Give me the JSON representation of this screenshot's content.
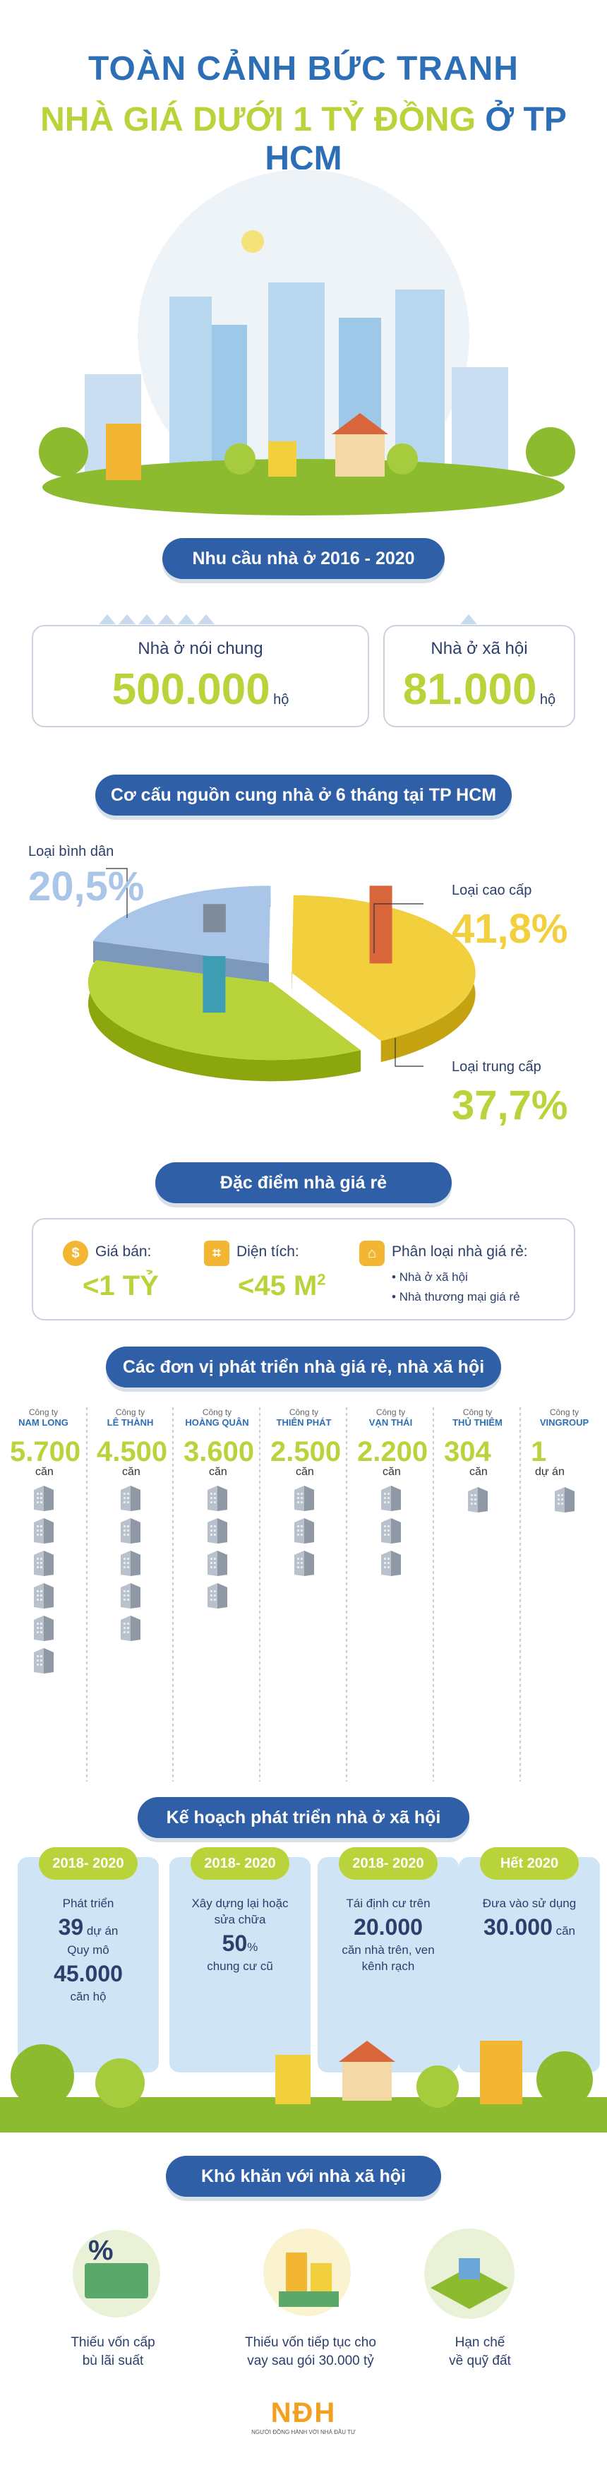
{
  "header": {
    "title_line1": "TOÀN CẢNH BỨC TRANH",
    "title_line2": "NHÀ GIÁ DƯỚI 1 TỶ ĐỒNG",
    "title_line2_suffix": "Ở TP HCM"
  },
  "demand": {
    "heading": "Nhu cầu nhà ở 2016 - 2020",
    "general": {
      "label": "Nhà ở nói chung",
      "value": "500.000",
      "unit": "hộ"
    },
    "social": {
      "label": "Nhà ở xã hội",
      "value": "81.000",
      "unit": "hộ"
    }
  },
  "supply": {
    "heading": "Cơ cấu nguồn cung nhà ở 6 tháng tại TP HCM",
    "chart_data": {
      "type": "pie",
      "title": "Cơ cấu nguồn cung nhà ở 6 tháng tại TP HCM",
      "categories": [
        "Loại bình dân",
        "Loại cao cấp",
        "Loại trung cấp"
      ],
      "values": [
        20.5,
        41.8,
        37.7
      ],
      "value_labels": [
        "20,5%",
        "41,8%",
        "37,7%"
      ],
      "colors": [
        "#a9c6e8",
        "#f2cf3c",
        "#b9d43a"
      ]
    }
  },
  "features": {
    "heading": "Đặc điểm nhà giá rẻ",
    "price": {
      "label": "Giá bán:",
      "value": "<1 TỶ"
    },
    "area": {
      "label": "Diện tích:",
      "value": "<45 M",
      "sup": "2"
    },
    "types": {
      "label": "Phân loại nhà giá rẻ:",
      "items": [
        "Nhà ở xã hội",
        "Nhà thương mại giá rẻ"
      ]
    }
  },
  "developers": {
    "heading": "Các đơn vị phát triển nhà giá rẻ, nhà xã hội",
    "company_label": "Công ty",
    "items": [
      {
        "name": "NAM LONG",
        "value": "5.700",
        "unit": "căn",
        "blocks": 6
      },
      {
        "name": "LÊ THÀNH",
        "value": "4.500",
        "unit": "căn",
        "blocks": 5
      },
      {
        "name": "HOÀNG QUÂN",
        "value": "3.600",
        "unit": "căn",
        "blocks": 4
      },
      {
        "name": "THIÊN PHÁT",
        "value": "2.500",
        "unit": "căn",
        "blocks": 3
      },
      {
        "name": "VẠN THÁI",
        "value": "2.200",
        "unit": "căn",
        "blocks": 3
      },
      {
        "name": "THỦ THIÊM",
        "value": "304",
        "unit": "căn",
        "blocks": 1
      },
      {
        "name": "VINGROUP",
        "value": "1",
        "unit": "dự án",
        "blocks": 1
      }
    ]
  },
  "plan": {
    "heading": "Kế hoạch phát triển nhà ở xã hội",
    "cards": [
      {
        "period": "2018- 2020",
        "l1": "Phát triển",
        "n1": "39",
        "u1": "dự án",
        "l2": "Quy mô",
        "n2": "45.000",
        "u2": "căn hộ"
      },
      {
        "period": "2018- 2020",
        "l1": "Xây dựng lại hoặc",
        "l1b": "sửa chữa",
        "n1": "50",
        "u1": "%",
        "l2": "chung cư cũ"
      },
      {
        "period": "2018- 2020",
        "l1": "Tái định cư trên",
        "n1": "20.000",
        "l2": "căn nhà trên, ven",
        "l2b": "kênh rạch"
      },
      {
        "period": "Hết 2020",
        "l1": "Đưa vào sử dụng",
        "n1": "30.000",
        "u1": "căn"
      }
    ]
  },
  "difficulties": {
    "heading": "Khó khăn với nhà xã hội",
    "items": [
      {
        "l1": "Thiếu vốn cấp",
        "l2": "bù lãi suất"
      },
      {
        "l1": "Thiếu vốn tiếp tục cho",
        "l2": "vay sau gói 30.000 tỷ"
      },
      {
        "l1": "Hạn chế",
        "l2": "về quỹ đất"
      }
    ]
  },
  "footer": {
    "logo": "NĐH",
    "tagline": "NGƯỜI ĐỒNG HÀNH VỚI NHÀ ĐẦU TƯ"
  },
  "colors": {
    "accent_blue": "#2f5fa6",
    "accent_green": "#b9d43a",
    "accent_yellow": "#f2cf3c"
  }
}
